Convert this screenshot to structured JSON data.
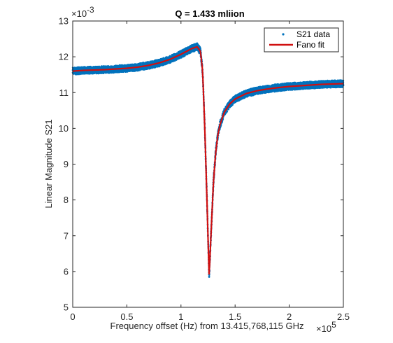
{
  "chart_data": {
    "type": "scatter",
    "title": "Q = 1.433 mliion",
    "xlabel": "Frequency offset (Hz) from 13.415,768,115 GHz",
    "ylabel": "Linear Magnitude S21",
    "x_multiplier_label": "×10",
    "x_multiplier_exp": "5",
    "y_multiplier_label": "×10",
    "y_multiplier_exp": "-3",
    "xlim": [
      0,
      2.5
    ],
    "ylim": [
      5,
      13
    ],
    "x_ticks": [
      0,
      0.5,
      1,
      1.5,
      2,
      2.5
    ],
    "x_tick_labels": [
      "0",
      "0.5",
      "1",
      "1.5",
      "2",
      "2.5"
    ],
    "y_ticks": [
      5,
      6,
      7,
      8,
      9,
      10,
      11,
      12,
      13
    ],
    "y_tick_labels": [
      "5",
      "6",
      "7",
      "8",
      "9",
      "10",
      "11",
      "12",
      "13"
    ],
    "grid": false,
    "legend_position": "top-right",
    "series": [
      {
        "name": "S21 data",
        "style": "dots",
        "color": "#0072BD",
        "noise": 0.1,
        "x": [
          0,
          0.1,
          0.2,
          0.3,
          0.4,
          0.5,
          0.6,
          0.7,
          0.8,
          0.9,
          1.0,
          1.05,
          1.1,
          1.15,
          1.18,
          1.2,
          1.22,
          1.24,
          1.26,
          1.28,
          1.3,
          1.32,
          1.34,
          1.36,
          1.4,
          1.45,
          1.5,
          1.6,
          1.7,
          1.8,
          1.9,
          2.0,
          2.1,
          2.2,
          2.3,
          2.4,
          2.5
        ],
        "y": [
          11.6,
          11.62,
          11.63,
          11.64,
          11.66,
          11.68,
          11.71,
          11.76,
          11.83,
          11.93,
          12.07,
          12.15,
          12.23,
          12.28,
          12.15,
          11.6,
          10.0,
          8.0,
          5.85,
          7.2,
          8.5,
          9.3,
          9.8,
          10.1,
          10.45,
          10.68,
          10.82,
          10.97,
          11.05,
          11.1,
          11.14,
          11.17,
          11.19,
          11.21,
          11.23,
          11.24,
          11.25
        ]
      },
      {
        "name": "Fano fit",
        "style": "line",
        "color": "#D01010",
        "x": [
          0,
          0.1,
          0.2,
          0.3,
          0.4,
          0.5,
          0.6,
          0.7,
          0.8,
          0.9,
          1.0,
          1.05,
          1.1,
          1.15,
          1.18,
          1.2,
          1.22,
          1.24,
          1.26,
          1.28,
          1.3,
          1.32,
          1.34,
          1.36,
          1.4,
          1.45,
          1.5,
          1.6,
          1.7,
          1.8,
          1.9,
          2.0,
          2.1,
          2.2,
          2.3,
          2.4,
          2.5
        ],
        "y": [
          11.6,
          11.62,
          11.63,
          11.64,
          11.66,
          11.68,
          11.71,
          11.76,
          11.83,
          11.93,
          12.07,
          12.15,
          12.23,
          12.28,
          12.15,
          11.6,
          10.0,
          8.0,
          5.85,
          7.2,
          8.5,
          9.3,
          9.8,
          10.1,
          10.45,
          10.68,
          10.82,
          10.97,
          11.05,
          11.1,
          11.14,
          11.17,
          11.19,
          11.21,
          11.23,
          11.24,
          11.25
        ]
      }
    ]
  }
}
